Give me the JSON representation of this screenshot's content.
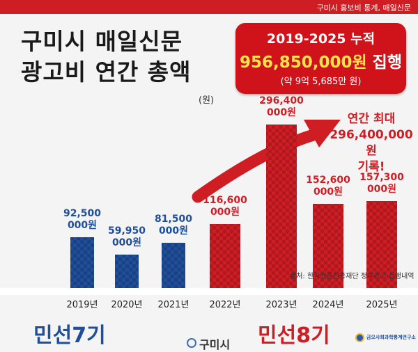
{
  "header": {
    "credit": "구미시 홍보비 통계, 매일신문"
  },
  "title": "구미시 매일신문\n광고비 연간 총액",
  "unit": "(원)",
  "callout": {
    "line1": "2019-2025 누적",
    "amount": "956,850,000원",
    "suffix": " 집행",
    "note": "(약 9억 5,685만 원)"
  },
  "annotation": {
    "line1": "연간 최대",
    "line2": "296,400,000원",
    "line3": "기록!"
  },
  "source": "출처: 한국언론진흥재단 정부광고 집행내역",
  "eras": {
    "left": "민선7기",
    "right": "민선8기"
  },
  "logos": {
    "gumi": "구미시",
    "institute": "금오사회과학통계연구소"
  },
  "colors": {
    "blue": "#1f4e9b",
    "red": "#cf1d24",
    "banner": "#cf1d24"
  },
  "chart_data": {
    "type": "bar",
    "categories": [
      "2019년",
      "2020년",
      "2021년",
      "2022년",
      "2023년",
      "2024년",
      "2025년"
    ],
    "values": [
      92500000,
      59950000,
      81500000,
      116600000,
      296400000,
      152600000,
      157300000
    ],
    "value_labels": [
      [
        "92,500",
        "000원"
      ],
      [
        "59,950",
        "000원"
      ],
      [
        "81,500",
        "000원"
      ],
      [
        "116,600",
        "000원"
      ],
      [
        "296,400",
        "000원"
      ],
      [
        "152,600",
        "000원"
      ],
      [
        "157,300",
        "000원"
      ]
    ],
    "bar_colors": [
      "#1f4e9b",
      "#1f4e9b",
      "#1f4e9b",
      "#cf1d24",
      "#cf1d24",
      "#cf1d24",
      "#cf1d24"
    ],
    "ylim": [
      0,
      296400000
    ],
    "trend_arrow": true
  }
}
